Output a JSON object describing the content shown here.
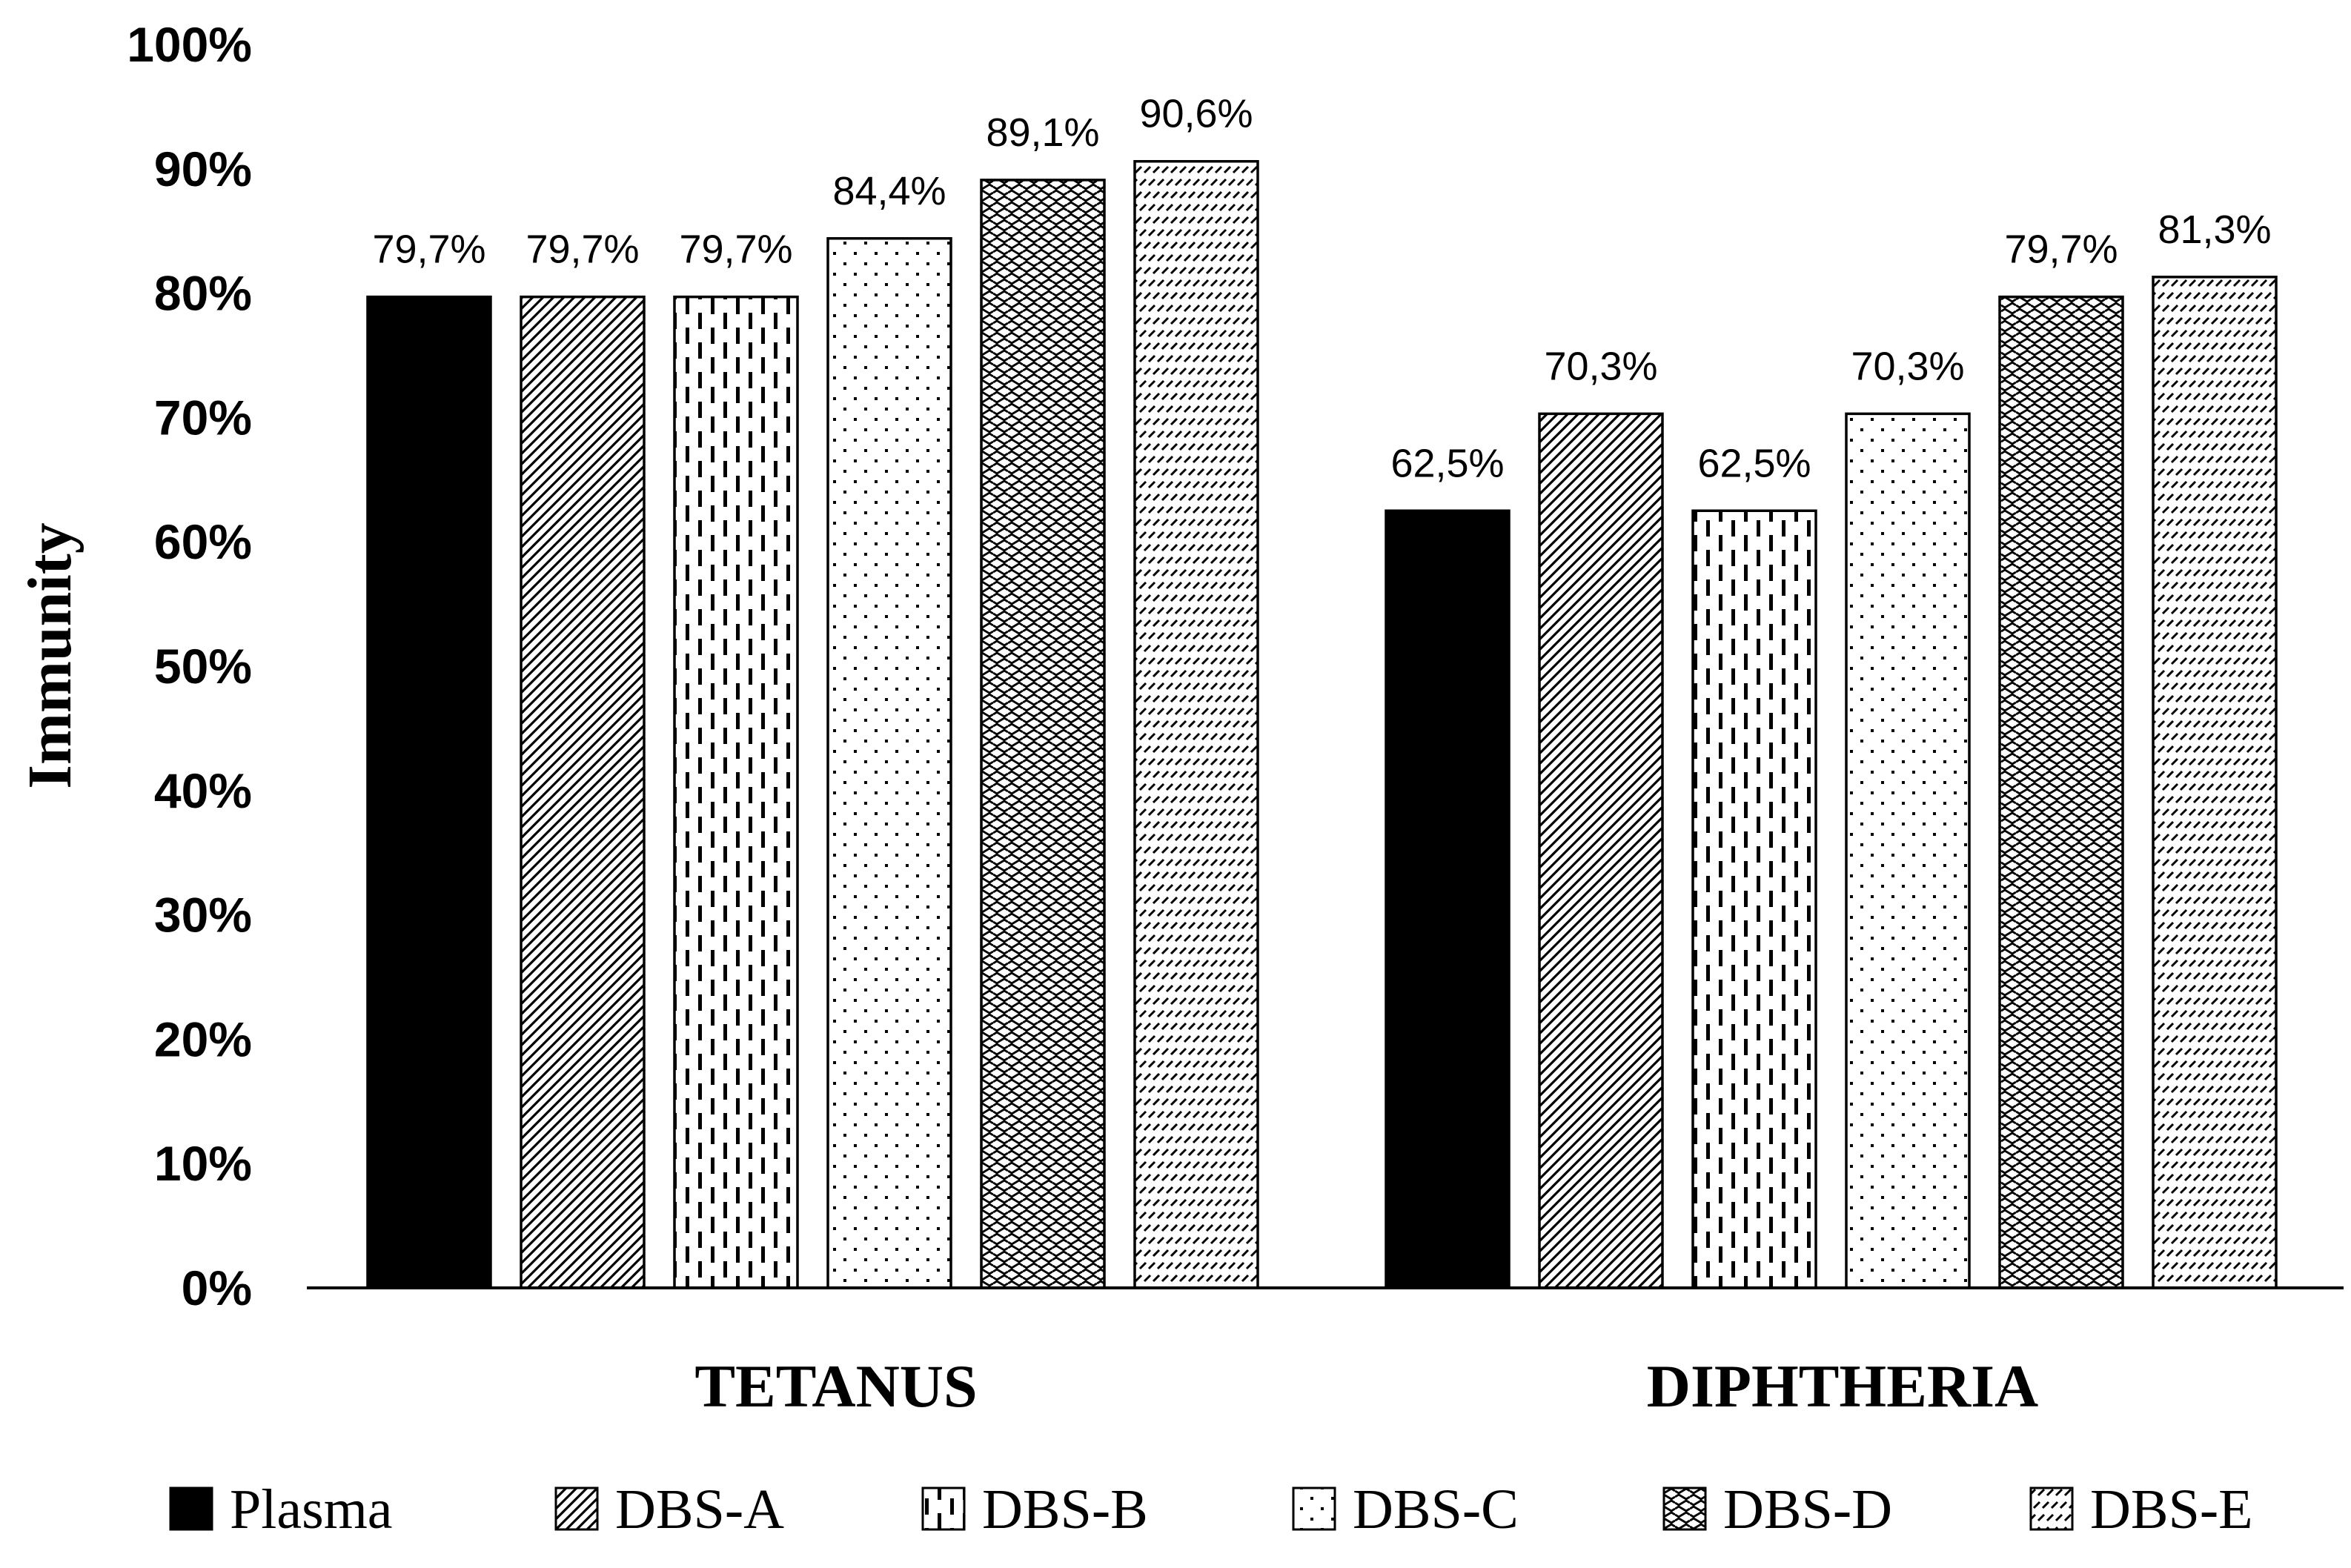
{
  "chart_data": {
    "type": "bar",
    "title": "",
    "xlabel": "",
    "ylabel": "Immunity",
    "ylim": [
      0,
      100
    ],
    "y_ticks": [
      "0%",
      "10%",
      "20%",
      "30%",
      "40%",
      "50%",
      "60%",
      "70%",
      "80%",
      "90%",
      "100%"
    ],
    "categories": [
      "TETANUS",
      "DIPHTHERIA"
    ],
    "series": [
      {
        "name": "Plasma",
        "values": [
          79.7,
          62.5
        ],
        "labels": [
          "79,7%",
          "62,5%"
        ],
        "pattern": "solid"
      },
      {
        "name": "DBS-A",
        "values": [
          79.7,
          70.3
        ],
        "labels": [
          "79,7%",
          "70,3%"
        ],
        "pattern": "diagonal"
      },
      {
        "name": "DBS-B",
        "values": [
          79.7,
          62.5
        ],
        "labels": [
          "79,7%",
          "62,5%"
        ],
        "pattern": "vertical-dash"
      },
      {
        "name": "DBS-C",
        "values": [
          84.4,
          70.3
        ],
        "labels": [
          "84,4%",
          "70,3%"
        ],
        "pattern": "dots"
      },
      {
        "name": "DBS-D",
        "values": [
          89.1,
          79.7
        ],
        "labels": [
          "89,1%",
          "79,7%"
        ],
        "pattern": "wave"
      },
      {
        "name": "DBS-E",
        "values": [
          90.6,
          81.3
        ],
        "labels": [
          "90,6%",
          "81,3%"
        ],
        "pattern": "dashed-diagonal"
      }
    ],
    "legend_position": "bottom",
    "grid": false
  }
}
